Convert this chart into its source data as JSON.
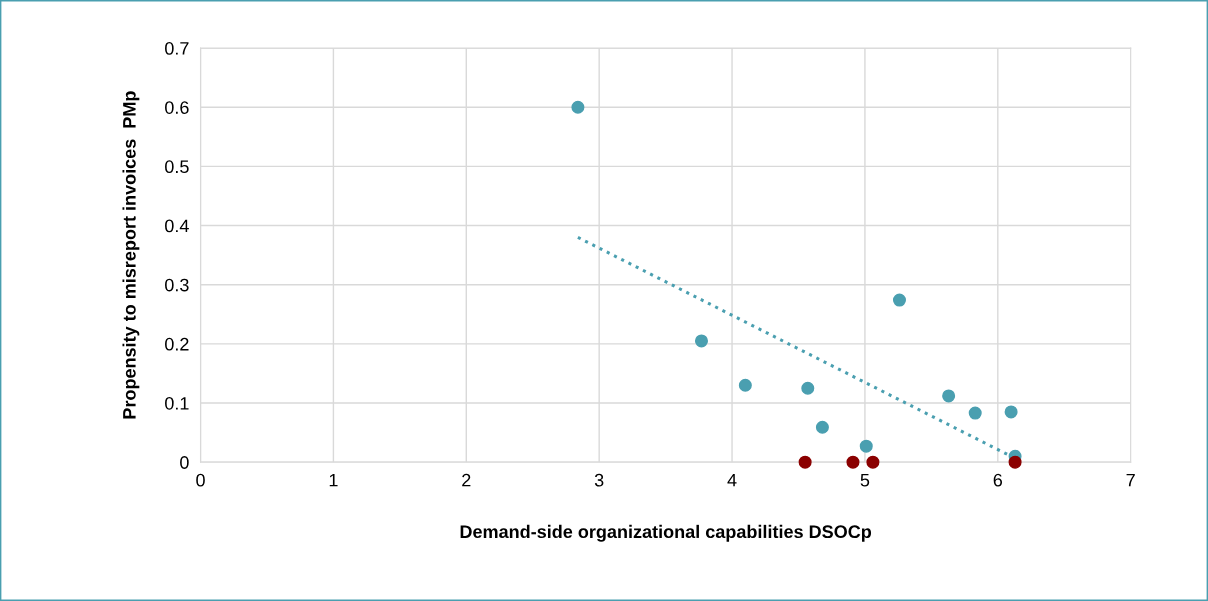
{
  "chart_data": {
    "type": "scatter",
    "xlabel": "Demand-side organizational capabilities DSOCp",
    "ylabel": "Propensity to misreport invoices  PMp",
    "xlim": [
      0,
      7
    ],
    "xticks": [
      0,
      1,
      2,
      3,
      4,
      5,
      6,
      7
    ],
    "ylim": [
      0,
      0.7
    ],
    "yticks": [
      0,
      0.1,
      0.2,
      0.3,
      0.4,
      0.5,
      0.6,
      0.7
    ],
    "grid": true,
    "legend": false,
    "marker": "circle",
    "series": [
      {
        "color": "#4a9fb0",
        "x": [
          2.84,
          3.77,
          4.1,
          4.57,
          4.68,
          5.01,
          5.26,
          5.63,
          5.83,
          6.1,
          6.13
        ],
        "values": [
          0.6,
          0.205,
          0.13,
          0.125,
          0.059,
          0.027,
          0.274,
          0.112,
          0.083,
          0.085,
          0.01
        ]
      },
      {
        "color": "#8b0000",
        "x": [
          4.55,
          4.91,
          5.06,
          6.13
        ],
        "values": [
          0,
          0,
          0,
          0
        ]
      },
      {
        "type": "line",
        "marker": "none",
        "line_style": "dotted",
        "color": "#4a9fb0",
        "x": [
          2.84,
          6.1
        ],
        "values": [
          0.38,
          0.01
        ]
      }
    ]
  }
}
